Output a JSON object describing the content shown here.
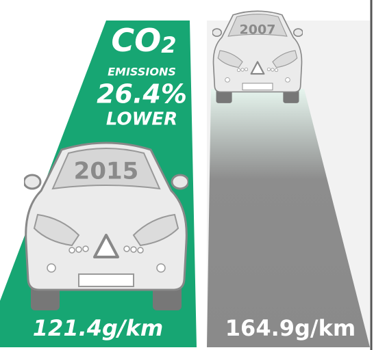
{
  "left": {
    "co2_label": "CO",
    "co2_subscript": "2",
    "line1": "EMISSIONS",
    "reduction": "26.4%",
    "line3": "LOWER",
    "year": "2015",
    "emissions": "121.4g/km"
  },
  "right": {
    "year": "2007",
    "emissions": "164.9g/km"
  }
}
